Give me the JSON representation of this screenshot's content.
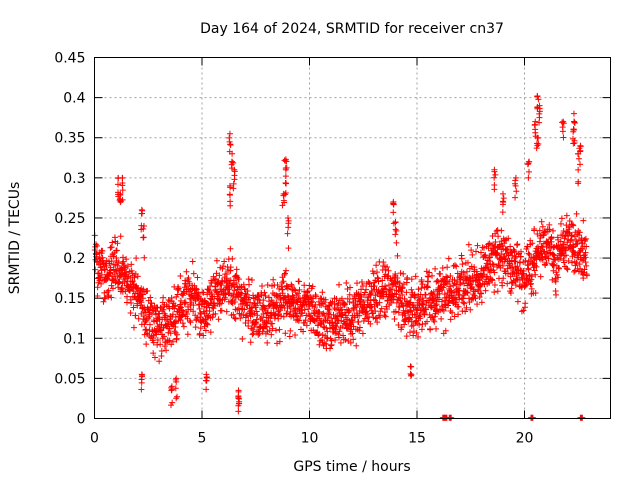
{
  "chart_data": {
    "type": "scatter",
    "title": "Day 164 of 2024, SRMTID for receiver cn37",
    "xlabel": "GPS time / hours",
    "ylabel": "SRMTID / TECUs",
    "xlim": [
      0,
      24
    ],
    "ylim": [
      0,
      0.45
    ],
    "grid": true,
    "marker": "+",
    "color": "#ff0000",
    "x_ticks": [
      0,
      5,
      10,
      15,
      20
    ],
    "x_tick_labels": [
      "0",
      "5",
      "10",
      "15",
      "20"
    ],
    "y_ticks": [
      0,
      0.05,
      0.1,
      0.15,
      0.2,
      0.25,
      0.3,
      0.35,
      0.4,
      0.45
    ],
    "y_tick_labels": [
      "0",
      "0.05",
      "0.1",
      "0.15",
      "0.2",
      "0.25",
      "0.3",
      "0.35",
      "0.4",
      "0.45"
    ],
    "series": [
      {
        "name": "SRMTID",
        "trend": [
          [
            0.0,
            0.2
          ],
          [
            0.5,
            0.18
          ],
          [
            1.0,
            0.19
          ],
          [
            1.5,
            0.17
          ],
          [
            2.0,
            0.15
          ],
          [
            2.5,
            0.12
          ],
          [
            3.0,
            0.11
          ],
          [
            3.5,
            0.12
          ],
          [
            4.0,
            0.14
          ],
          [
            4.5,
            0.15
          ],
          [
            5.0,
            0.13
          ],
          [
            5.5,
            0.15
          ],
          [
            6.0,
            0.17
          ],
          [
            6.5,
            0.16
          ],
          [
            7.0,
            0.14
          ],
          [
            7.5,
            0.13
          ],
          [
            8.0,
            0.13
          ],
          [
            8.5,
            0.14
          ],
          [
            9.0,
            0.15
          ],
          [
            9.5,
            0.14
          ],
          [
            10.0,
            0.14
          ],
          [
            10.5,
            0.12
          ],
          [
            11.0,
            0.12
          ],
          [
            11.5,
            0.13
          ],
          [
            12.0,
            0.13
          ],
          [
            12.5,
            0.14
          ],
          [
            13.0,
            0.15
          ],
          [
            13.5,
            0.16
          ],
          [
            14.0,
            0.16
          ],
          [
            14.5,
            0.14
          ],
          [
            15.0,
            0.13
          ],
          [
            15.5,
            0.15
          ],
          [
            16.0,
            0.15
          ],
          [
            16.5,
            0.16
          ],
          [
            17.0,
            0.16
          ],
          [
            17.5,
            0.17
          ],
          [
            18.0,
            0.18
          ],
          [
            18.5,
            0.2
          ],
          [
            19.0,
            0.2
          ],
          [
            19.5,
            0.19
          ],
          [
            20.0,
            0.17
          ],
          [
            20.5,
            0.2
          ],
          [
            21.0,
            0.22
          ],
          [
            21.5,
            0.2
          ],
          [
            22.0,
            0.22
          ],
          [
            22.5,
            0.21
          ],
          [
            22.9,
            0.2
          ]
        ],
        "spikes": [
          [
            1.1,
            0.3
          ],
          [
            1.2,
            0.28
          ],
          [
            1.3,
            0.3
          ],
          [
            2.3,
            0.24
          ],
          [
            2.2,
            0.26
          ],
          [
            6.3,
            0.355
          ],
          [
            6.4,
            0.33
          ],
          [
            6.5,
            0.31
          ],
          [
            6.3,
            0.29
          ],
          [
            8.9,
            0.323
          ],
          [
            8.9,
            0.31
          ],
          [
            9.0,
            0.25
          ],
          [
            8.8,
            0.28
          ],
          [
            13.9,
            0.27
          ],
          [
            14.0,
            0.245
          ],
          [
            18.6,
            0.31
          ],
          [
            19.0,
            0.28
          ],
          [
            19.6,
            0.3
          ],
          [
            20.2,
            0.32
          ],
          [
            20.6,
            0.402
          ],
          [
            20.7,
            0.39
          ],
          [
            20.5,
            0.37
          ],
          [
            20.6,
            0.35
          ],
          [
            21.8,
            0.37
          ],
          [
            22.3,
            0.38
          ],
          [
            22.3,
            0.36
          ],
          [
            22.6,
            0.34
          ],
          [
            22.5,
            0.33
          ],
          [
            6.7,
            0.035
          ],
          [
            6.7,
            0.025
          ],
          [
            3.6,
            0.04
          ],
          [
            3.8,
            0.05
          ],
          [
            2.2,
            0.055
          ],
          [
            5.2,
            0.055
          ],
          [
            14.7,
            0.065
          ]
        ],
        "zeros": [
          16.2,
          16.3,
          16.5,
          20.3,
          22.6
        ]
      }
    ]
  }
}
